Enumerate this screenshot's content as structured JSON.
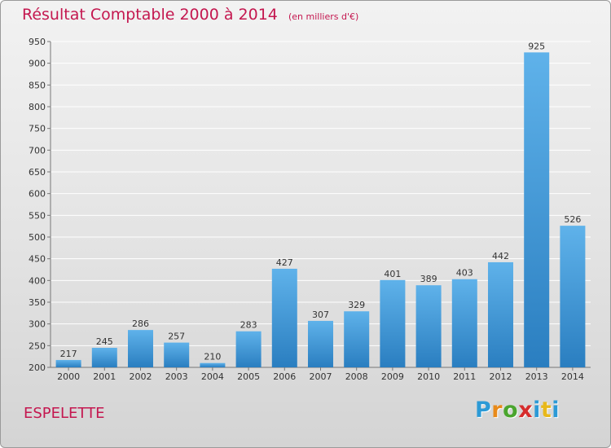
{
  "title": "Résultat Comptable 2000 à 2014",
  "subtitle": "(en milliers d'€)",
  "commune": "ESPELETTE",
  "logo": {
    "letters": [
      "P",
      "r",
      "o",
      "x",
      "i",
      "t",
      "i"
    ],
    "colors": [
      "#2c9ad6",
      "#e88a1a",
      "#4aa52e",
      "#d62c2c",
      "#2c9ad6",
      "#e8b81a",
      "#2c9ad6"
    ]
  },
  "colors": {
    "title": "#c4174f",
    "bar_top": "#5fb2ea",
    "bar_bottom": "#2a7ec0",
    "label": "#333333"
  },
  "chart_data": {
    "type": "bar",
    "categories": [
      "2000",
      "2001",
      "2002",
      "2003",
      "2004",
      "2005",
      "2006",
      "2007",
      "2008",
      "2009",
      "2010",
      "2011",
      "2012",
      "2013",
      "2014"
    ],
    "values": [
      217,
      245,
      286,
      257,
      210,
      283,
      427,
      307,
      329,
      401,
      389,
      403,
      442,
      925,
      526
    ],
    "ylim": [
      200,
      950
    ],
    "yticks": [
      200,
      250,
      300,
      350,
      400,
      450,
      500,
      550,
      600,
      650,
      700,
      750,
      800,
      850,
      900,
      950
    ],
    "grid": true
  }
}
